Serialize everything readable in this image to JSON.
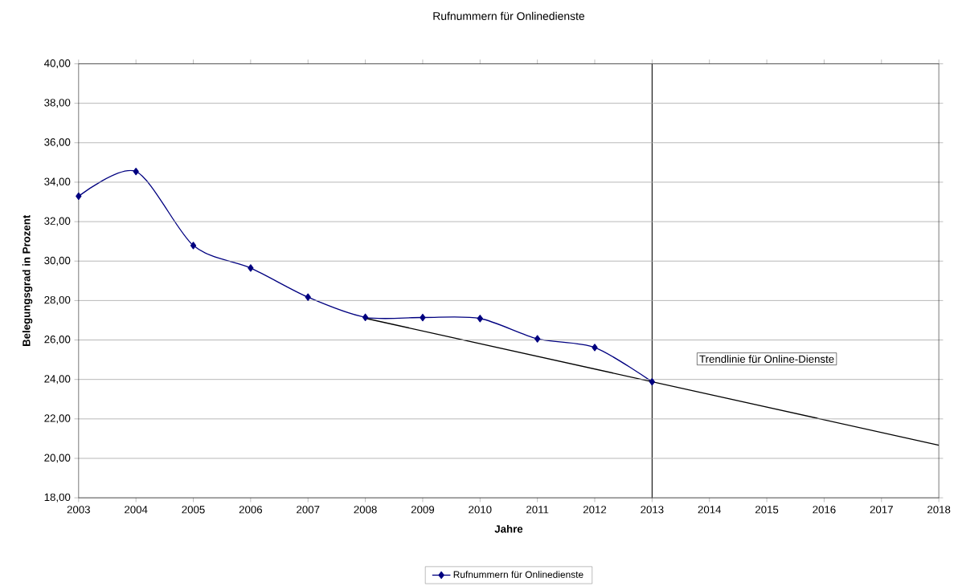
{
  "chart_data": {
    "type": "line",
    "title": "Rufnummern für Onlinedienste",
    "xlabel": "Jahre",
    "ylabel": "Belegungsgrad in Prozent",
    "x": [
      2003,
      2004,
      2005,
      2006,
      2007,
      2008,
      2009,
      2010,
      2011,
      2012,
      2013
    ],
    "series": [
      {
        "name": "Rufnummern für Onlinedienste",
        "color": "#000080",
        "values": [
          33.29,
          34.54,
          30.79,
          29.65,
          28.17,
          27.15,
          27.14,
          27.09,
          26.06,
          25.62,
          23.88
        ],
        "marker": "diamond"
      },
      {
        "type": "line",
        "color": "#000000",
        "x": [
          2008,
          2018
        ],
        "values": [
          27.1,
          20.67
        ],
        "marker": "none"
      }
    ],
    "xlim": [
      2003,
      2018
    ],
    "xticks": [
      2003,
      2004,
      2005,
      2006,
      2007,
      2008,
      2009,
      2010,
      2011,
      2012,
      2013,
      2014,
      2015,
      2016,
      2017,
      2018
    ],
    "ylim": [
      18,
      40
    ],
    "yticks": [
      {
        "value": 18,
        "label": "18,00"
      },
      {
        "value": 20,
        "label": "20,00"
      },
      {
        "value": 22,
        "label": "22,00"
      },
      {
        "value": 24,
        "label": "24,00"
      },
      {
        "value": 26,
        "label": "26,00"
      },
      {
        "value": 28,
        "label": "28,00"
      },
      {
        "value": 30,
        "label": "30,00"
      },
      {
        "value": 32,
        "label": "32,00"
      },
      {
        "value": 34,
        "label": "34,00"
      },
      {
        "value": 36,
        "label": "36,00"
      },
      {
        "value": 38,
        "label": "38,00"
      },
      {
        "value": 40,
        "label": "40,00"
      }
    ],
    "ref_lines": [
      {
        "axis": "x",
        "value": 2013,
        "color": "#000000"
      }
    ],
    "annotations": [
      "Trendlinie für Online-Dienste"
    ],
    "grid": "y",
    "legend": "bottom",
    "line_style": "solid"
  }
}
